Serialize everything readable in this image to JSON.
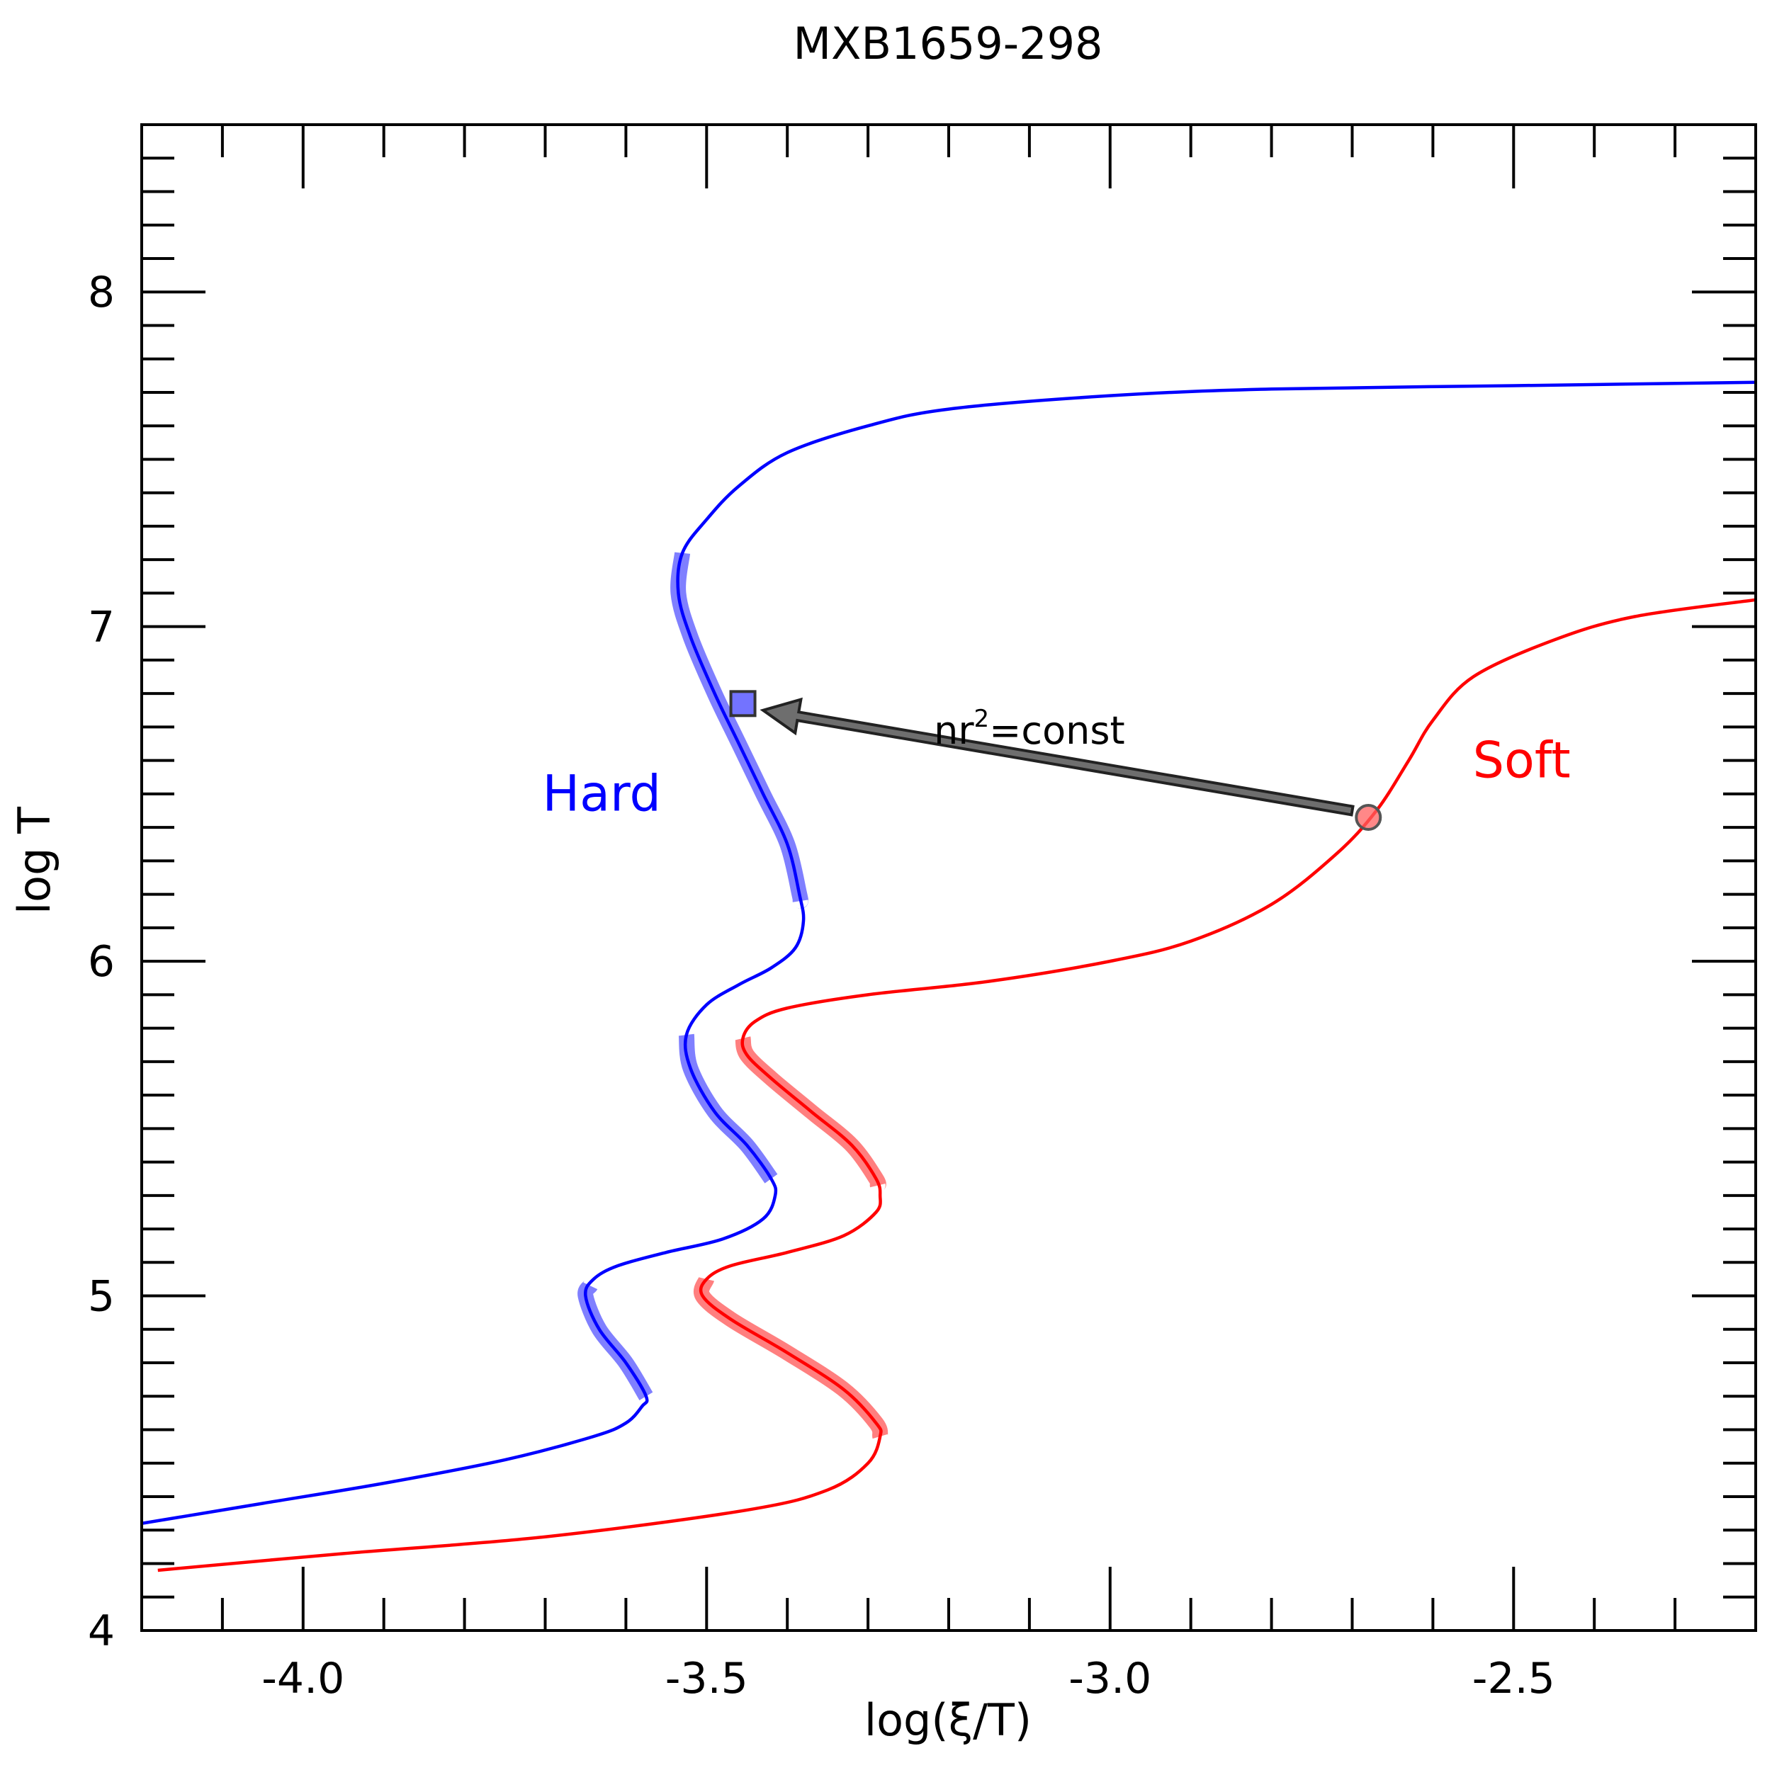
{
  "chart_data": {
    "type": "line",
    "title": "MXB1659-298",
    "xlabel": "log(ξ/T)",
    "ylabel": "log T",
    "xlim": [
      -4.2,
      -2.2
    ],
    "ylim": [
      4.0,
      8.5
    ],
    "x_ticks": [
      {
        "value": -4.0,
        "label": "-4.0"
      },
      {
        "value": -3.5,
        "label": "-3.5"
      },
      {
        "value": -3.0,
        "label": "-3.0"
      },
      {
        "value": -2.5,
        "label": "-2.5"
      }
    ],
    "y_ticks": [
      {
        "value": 4,
        "label": "4"
      },
      {
        "value": 5,
        "label": "5"
      },
      {
        "value": 6,
        "label": "6"
      },
      {
        "value": 7,
        "label": "7"
      },
      {
        "value": 8,
        "label": "8"
      }
    ],
    "x_minor_step": 0.1,
    "y_minor_step": 0.1,
    "grid": false,
    "series": [
      {
        "name": "Hard",
        "color": "#0000ff",
        "x": [
          -4.2,
          -4.05,
          -3.9,
          -3.75,
          -3.64,
          -3.6,
          -3.58,
          -3.575,
          -3.6,
          -3.633,
          -3.65,
          -3.64,
          -3.61,
          -3.55,
          -3.48,
          -3.43,
          -3.415,
          -3.42,
          -3.45,
          -3.49,
          -3.52,
          -3.525,
          -3.5,
          -3.46,
          -3.42,
          -3.39,
          -3.38,
          -3.385,
          -3.4,
          -3.43,
          -3.46,
          -3.49,
          -3.52,
          -3.535,
          -3.53,
          -3.5,
          -3.46,
          -3.4,
          -3.3,
          -3.2,
          -3.0,
          -2.8,
          -2.5,
          -2.2
        ],
        "y": [
          4.32,
          4.38,
          4.44,
          4.51,
          4.58,
          4.62,
          4.67,
          4.7,
          4.8,
          4.9,
          5.0,
          5.05,
          5.09,
          5.13,
          5.17,
          5.23,
          5.3,
          5.35,
          5.45,
          5.55,
          5.68,
          5.78,
          5.87,
          5.93,
          5.98,
          6.04,
          6.12,
          6.2,
          6.35,
          6.5,
          6.65,
          6.8,
          6.97,
          7.1,
          7.22,
          7.32,
          7.42,
          7.52,
          7.6,
          7.65,
          7.69,
          7.71,
          7.72,
          7.73
        ],
        "stable_branches": [
          [
            4.7,
            5.03
          ],
          [
            5.35,
            5.78
          ],
          [
            6.18,
            7.22
          ]
        ]
      },
      {
        "name": "Soft",
        "color": "#ff0000",
        "x": [
          -4.18,
          -3.95,
          -3.7,
          -3.45,
          -3.35,
          -3.3,
          -3.285,
          -3.29,
          -3.33,
          -3.4,
          -3.47,
          -3.505,
          -3.5,
          -3.47,
          -3.4,
          -3.33,
          -3.29,
          -3.285,
          -3.29,
          -3.32,
          -3.37,
          -3.42,
          -3.45,
          -3.455,
          -3.44,
          -3.4,
          -3.3,
          -3.15,
          -3.0,
          -2.9,
          -2.8,
          -2.72,
          -2.67,
          -2.63,
          -2.6,
          -2.55,
          -2.45,
          -2.35,
          -2.2
        ],
        "y": [
          4.18,
          4.23,
          4.28,
          4.36,
          4.42,
          4.5,
          4.58,
          4.62,
          4.72,
          4.83,
          4.93,
          5.0,
          5.05,
          5.09,
          5.13,
          5.18,
          5.25,
          5.3,
          5.35,
          5.45,
          5.55,
          5.65,
          5.72,
          5.77,
          5.82,
          5.86,
          5.9,
          5.94,
          6.0,
          6.06,
          6.17,
          6.32,
          6.45,
          6.6,
          6.72,
          6.85,
          6.96,
          7.03,
          7.08
        ],
        "stable_branches": [
          [
            4.58,
            5.05
          ],
          [
            5.33,
            5.77
          ]
        ]
      }
    ],
    "markers": [
      {
        "name": "hard-point",
        "shape": "square",
        "x": -3.455,
        "y": 6.77,
        "color": "#0000ff"
      },
      {
        "name": "soft-point",
        "shape": "circle",
        "x": -2.68,
        "y": 6.43,
        "color": "#ff6060"
      }
    ],
    "arrow": {
      "from_x": -2.7,
      "from_y": 6.45,
      "to_x": -3.43,
      "to_y": 6.75,
      "color": "#555555"
    },
    "annotations": [
      {
        "id": "const",
        "base": "nr",
        "sup": "2",
        "rest": "=const",
        "x": -3.1,
        "y": 6.65
      },
      {
        "id": "hard",
        "text": "Hard",
        "x": -3.63,
        "y": 6.45,
        "color": "#0000ff"
      },
      {
        "id": "soft",
        "text": "Soft",
        "x": -2.49,
        "y": 6.55,
        "color": "#ff0000"
      }
    ]
  }
}
